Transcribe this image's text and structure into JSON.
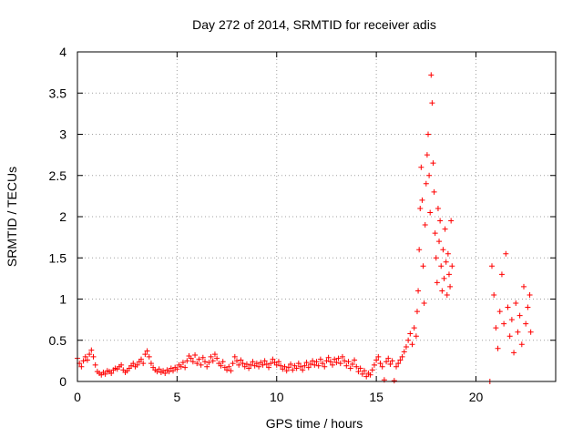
{
  "chart_data": {
    "type": "scatter",
    "title": "Day 272 of 2014, SRMTID for receiver adis",
    "xlabel": "GPS time / hours",
    "ylabel": "SRMTID / TECUs",
    "xlim": [
      0,
      24
    ],
    "ylim": [
      0,
      4
    ],
    "xticks": [
      "0",
      "5",
      "10",
      "15",
      "20"
    ],
    "yticks": [
      "0",
      "0.5",
      "1",
      "1.5",
      "2",
      "2.5",
      "3",
      "3.5",
      "4"
    ],
    "grid": true,
    "marker": "+",
    "color": "#ff0000",
    "series": [
      {
        "name": "SRMTID",
        "points": [
          [
            0.0,
            0.28
          ],
          [
            0.1,
            0.22
          ],
          [
            0.2,
            0.18
          ],
          [
            0.3,
            0.25
          ],
          [
            0.4,
            0.3
          ],
          [
            0.5,
            0.26
          ],
          [
            0.6,
            0.33
          ],
          [
            0.7,
            0.38
          ],
          [
            0.8,
            0.3
          ],
          [
            0.9,
            0.2
          ],
          [
            1.0,
            0.12
          ],
          [
            1.1,
            0.1
          ],
          [
            1.2,
            0.08
          ],
          [
            1.3,
            0.11
          ],
          [
            1.4,
            0.09
          ],
          [
            1.5,
            0.13
          ],
          [
            1.6,
            0.12
          ],
          [
            1.7,
            0.1
          ],
          [
            1.8,
            0.14
          ],
          [
            1.9,
            0.16
          ],
          [
            2.0,
            0.15
          ],
          [
            2.1,
            0.18
          ],
          [
            2.2,
            0.2
          ],
          [
            2.3,
            0.14
          ],
          [
            2.4,
            0.11
          ],
          [
            2.5,
            0.13
          ],
          [
            2.6,
            0.16
          ],
          [
            2.7,
            0.19
          ],
          [
            2.8,
            0.22
          ],
          [
            2.9,
            0.18
          ],
          [
            3.0,
            0.2
          ],
          [
            3.1,
            0.24
          ],
          [
            3.2,
            0.27
          ],
          [
            3.3,
            0.22
          ],
          [
            3.4,
            0.33
          ],
          [
            3.5,
            0.37
          ],
          [
            3.6,
            0.3
          ],
          [
            3.7,
            0.22
          ],
          [
            3.8,
            0.17
          ],
          [
            3.9,
            0.14
          ],
          [
            4.0,
            0.12
          ],
          [
            4.1,
            0.15
          ],
          [
            4.2,
            0.11
          ],
          [
            4.3,
            0.13
          ],
          [
            4.4,
            0.1
          ],
          [
            4.5,
            0.14
          ],
          [
            4.6,
            0.12
          ],
          [
            4.7,
            0.16
          ],
          [
            4.8,
            0.13
          ],
          [
            4.9,
            0.17
          ],
          [
            5.0,
            0.15
          ],
          [
            5.1,
            0.2
          ],
          [
            5.2,
            0.18
          ],
          [
            5.3,
            0.23
          ],
          [
            5.4,
            0.17
          ],
          [
            5.5,
            0.25
          ],
          [
            5.6,
            0.31
          ],
          [
            5.7,
            0.28
          ],
          [
            5.8,
            0.24
          ],
          [
            5.9,
            0.32
          ],
          [
            6.0,
            0.22
          ],
          [
            6.1,
            0.27
          ],
          [
            6.2,
            0.2
          ],
          [
            6.3,
            0.29
          ],
          [
            6.4,
            0.24
          ],
          [
            6.5,
            0.18
          ],
          [
            6.6,
            0.23
          ],
          [
            6.7,
            0.3
          ],
          [
            6.8,
            0.25
          ],
          [
            6.9,
            0.33
          ],
          [
            7.0,
            0.28
          ],
          [
            7.1,
            0.22
          ],
          [
            7.2,
            0.19
          ],
          [
            7.3,
            0.24
          ],
          [
            7.4,
            0.17
          ],
          [
            7.5,
            0.14
          ],
          [
            7.6,
            0.18
          ],
          [
            7.7,
            0.13
          ],
          [
            7.8,
            0.22
          ],
          [
            7.9,
            0.3
          ],
          [
            8.0,
            0.25
          ],
          [
            8.1,
            0.2
          ],
          [
            8.2,
            0.26
          ],
          [
            8.3,
            0.22
          ],
          [
            8.4,
            0.18
          ],
          [
            8.5,
            0.21
          ],
          [
            8.6,
            0.16
          ],
          [
            8.7,
            0.2
          ],
          [
            8.8,
            0.24
          ],
          [
            8.9,
            0.19
          ],
          [
            9.0,
            0.22
          ],
          [
            9.1,
            0.18
          ],
          [
            9.2,
            0.23
          ],
          [
            9.3,
            0.2
          ],
          [
            9.4,
            0.25
          ],
          [
            9.5,
            0.21
          ],
          [
            9.6,
            0.17
          ],
          [
            9.7,
            0.22
          ],
          [
            9.8,
            0.27
          ],
          [
            9.9,
            0.23
          ],
          [
            10.0,
            0.2
          ],
          [
            10.1,
            0.24
          ],
          [
            10.2,
            0.19
          ],
          [
            10.3,
            0.15
          ],
          [
            10.4,
            0.18
          ],
          [
            10.5,
            0.13
          ],
          [
            10.6,
            0.17
          ],
          [
            10.7,
            0.21
          ],
          [
            10.8,
            0.14
          ],
          [
            10.9,
            0.19
          ],
          [
            11.0,
            0.16
          ],
          [
            11.1,
            0.22
          ],
          [
            11.2,
            0.18
          ],
          [
            11.3,
            0.14
          ],
          [
            11.4,
            0.19
          ],
          [
            11.5,
            0.23
          ],
          [
            11.6,
            0.17
          ],
          [
            11.7,
            0.21
          ],
          [
            11.8,
            0.25
          ],
          [
            11.9,
            0.2
          ],
          [
            12.0,
            0.24
          ],
          [
            12.1,
            0.19
          ],
          [
            12.2,
            0.27
          ],
          [
            12.3,
            0.22
          ],
          [
            12.4,
            0.18
          ],
          [
            12.5,
            0.25
          ],
          [
            12.6,
            0.29
          ],
          [
            12.7,
            0.24
          ],
          [
            12.8,
            0.2
          ],
          [
            12.9,
            0.27
          ],
          [
            13.0,
            0.23
          ],
          [
            13.1,
            0.28
          ],
          [
            13.2,
            0.22
          ],
          [
            13.3,
            0.3
          ],
          [
            13.4,
            0.25
          ],
          [
            13.5,
            0.19
          ],
          [
            13.6,
            0.24
          ],
          [
            13.7,
            0.16
          ],
          [
            13.8,
            0.21
          ],
          [
            13.9,
            0.26
          ],
          [
            14.0,
            0.18
          ],
          [
            14.1,
            0.12
          ],
          [
            14.2,
            0.16
          ],
          [
            14.3,
            0.09
          ],
          [
            14.4,
            0.13
          ],
          [
            14.5,
            0.06
          ],
          [
            14.6,
            0.1
          ],
          [
            14.7,
            0.08
          ],
          [
            14.8,
            0.14
          ],
          [
            14.9,
            0.2
          ],
          [
            15.0,
            0.26
          ],
          [
            15.1,
            0.3
          ],
          [
            15.2,
            0.22
          ],
          [
            15.3,
            0.18
          ],
          [
            15.4,
            0.02
          ],
          [
            15.5,
            0.24
          ],
          [
            15.6,
            0.28
          ],
          [
            15.7,
            0.21
          ],
          [
            15.8,
            0.25
          ],
          [
            15.9,
            0.01
          ],
          [
            16.0,
            0.18
          ],
          [
            16.1,
            0.22
          ],
          [
            16.2,
            0.26
          ],
          [
            16.3,
            0.3
          ],
          [
            16.4,
            0.36
          ],
          [
            16.5,
            0.42
          ],
          [
            16.6,
            0.5
          ],
          [
            16.7,
            0.58
          ],
          [
            16.8,
            0.45
          ],
          [
            16.9,
            0.65
          ],
          [
            17.0,
            0.55
          ],
          [
            17.05,
            0.85
          ],
          [
            17.1,
            1.1
          ],
          [
            17.15,
            1.6
          ],
          [
            17.2,
            2.1
          ],
          [
            17.25,
            2.6
          ],
          [
            17.3,
            2.2
          ],
          [
            17.35,
            1.4
          ],
          [
            17.4,
            0.95
          ],
          [
            17.45,
            1.9
          ],
          [
            17.5,
            2.4
          ],
          [
            17.55,
            2.75
          ],
          [
            17.6,
            3.0
          ],
          [
            17.65,
            2.5
          ],
          [
            17.7,
            2.05
          ],
          [
            17.75,
            3.72
          ],
          [
            17.8,
            3.38
          ],
          [
            17.85,
            2.65
          ],
          [
            17.9,
            2.3
          ],
          [
            17.95,
            1.8
          ],
          [
            18.0,
            1.5
          ],
          [
            18.05,
            1.2
          ],
          [
            18.1,
            2.1
          ],
          [
            18.15,
            1.7
          ],
          [
            18.2,
            1.95
          ],
          [
            18.25,
            1.4
          ],
          [
            18.3,
            1.1
          ],
          [
            18.35,
            1.6
          ],
          [
            18.4,
            1.25
          ],
          [
            18.45,
            1.85
          ],
          [
            18.5,
            1.45
          ],
          [
            18.55,
            1.05
          ],
          [
            18.6,
            1.55
          ],
          [
            18.65,
            1.3
          ],
          [
            18.7,
            1.15
          ],
          [
            18.75,
            1.95
          ],
          [
            18.8,
            1.4
          ],
          [
            20.7,
            0.0
          ],
          [
            20.8,
            1.4
          ],
          [
            20.9,
            1.05
          ],
          [
            21.0,
            0.65
          ],
          [
            21.1,
            0.4
          ],
          [
            21.2,
            0.85
          ],
          [
            21.3,
            1.3
          ],
          [
            21.4,
            0.7
          ],
          [
            21.5,
            1.55
          ],
          [
            21.6,
            0.9
          ],
          [
            21.7,
            0.55
          ],
          [
            21.8,
            0.75
          ],
          [
            21.9,
            0.35
          ],
          [
            22.0,
            0.95
          ],
          [
            22.1,
            0.6
          ],
          [
            22.2,
            0.8
          ],
          [
            22.3,
            0.45
          ],
          [
            22.4,
            1.15
          ],
          [
            22.5,
            0.7
          ],
          [
            22.6,
            0.9
          ],
          [
            22.7,
            1.05
          ],
          [
            22.75,
            0.6
          ]
        ]
      }
    ]
  }
}
